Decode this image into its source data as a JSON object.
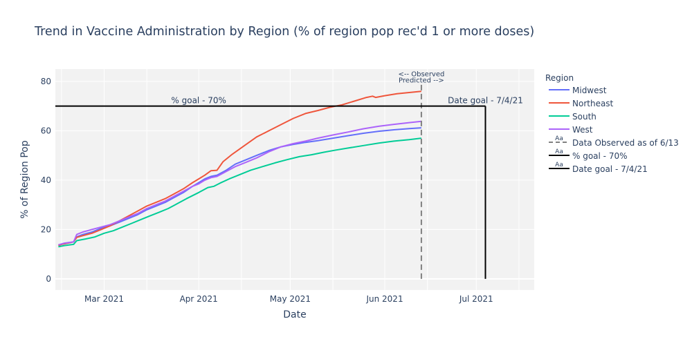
{
  "chart_data": {
    "type": "line",
    "title": "Trend in Vaccine Administration by Region (% of region pop rec'd 1 or more doses)",
    "xlabel": "Date",
    "ylabel": "% of Region Pop",
    "xlim": [
      "2021-02-13",
      "2021-07-20"
    ],
    "ylim": [
      -4.5,
      85
    ],
    "x_ticks": [
      {
        "date": "2021-03-01",
        "label": "Mar 2021"
      },
      {
        "date": "2021-04-01",
        "label": "Apr 2021"
      },
      {
        "date": "2021-05-01",
        "label": "May 2021"
      },
      {
        "date": "2021-06-01",
        "label": "Jun 2021"
      },
      {
        "date": "2021-07-01",
        "label": "Jul 2021"
      }
    ],
    "y_ticks": [
      0,
      20,
      40,
      60,
      80
    ],
    "grid": true,
    "plot_background": "#f2f2f2",
    "legend": {
      "title": "Region",
      "placement": "right",
      "entries": [
        {
          "name": "Midwest",
          "style": "line",
          "color": "#636efa"
        },
        {
          "name": "Northeast",
          "style": "line",
          "color": "#ef553b"
        },
        {
          "name": "South",
          "style": "line",
          "color": "#00cc96"
        },
        {
          "name": "West",
          "style": "line",
          "color": "#ab63fa"
        },
        {
          "name": "Data Observed as of 6/13",
          "style": "dash",
          "color": "#808080",
          "marker_text": "Aa"
        },
        {
          "name": "% goal - 70%",
          "style": "line",
          "color": "#000000",
          "marker_text": "Aa"
        },
        {
          "name": "Date goal - 7/4/21",
          "style": "line",
          "color": "#000000",
          "marker_text": "Aa"
        }
      ]
    },
    "series": [
      {
        "name": "Midwest",
        "color": "#636efa",
        "points": [
          [
            "2021-02-14",
            13.5
          ],
          [
            "2021-02-15",
            14.0
          ],
          [
            "2021-02-17",
            14.5
          ],
          [
            "2021-02-19",
            15.0
          ],
          [
            "2021-02-20",
            17.0
          ],
          [
            "2021-02-22",
            18.0
          ],
          [
            "2021-02-25",
            19.0
          ],
          [
            "2021-02-28",
            20.5
          ],
          [
            "2021-03-03",
            21.5
          ],
          [
            "2021-03-06",
            23.0
          ],
          [
            "2021-03-09",
            24.5
          ],
          [
            "2021-03-12",
            26.0
          ],
          [
            "2021-03-15",
            28.0
          ],
          [
            "2021-03-18",
            29.5
          ],
          [
            "2021-03-21",
            31.0
          ],
          [
            "2021-03-24",
            33.0
          ],
          [
            "2021-03-27",
            35.0
          ],
          [
            "2021-03-30",
            37.5
          ],
          [
            "2021-04-01",
            39.0
          ],
          [
            "2021-04-03",
            40.5
          ],
          [
            "2021-04-05",
            41.5
          ],
          [
            "2021-04-07",
            42.0
          ],
          [
            "2021-04-10",
            44.0
          ],
          [
            "2021-04-13",
            46.5
          ],
          [
            "2021-04-16",
            48.0
          ],
          [
            "2021-04-20",
            50.0
          ],
          [
            "2021-04-24",
            52.0
          ],
          [
            "2021-04-28",
            53.5
          ],
          [
            "2021-05-02",
            54.5
          ],
          [
            "2021-05-06",
            55.3
          ],
          [
            "2021-05-10",
            56.0
          ],
          [
            "2021-05-15",
            57.0
          ],
          [
            "2021-05-20",
            58.0
          ],
          [
            "2021-05-25",
            59.0
          ],
          [
            "2021-05-30",
            59.8
          ],
          [
            "2021-06-04",
            60.4
          ],
          [
            "2021-06-09",
            60.9
          ],
          [
            "2021-06-13",
            61.2
          ]
        ]
      },
      {
        "name": "Northeast",
        "color": "#ef553b",
        "points": [
          [
            "2021-02-14",
            13.5
          ],
          [
            "2021-02-15",
            14.0
          ],
          [
            "2021-02-17",
            14.5
          ],
          [
            "2021-02-19",
            15.0
          ],
          [
            "2021-02-20",
            16.8
          ],
          [
            "2021-02-22",
            17.5
          ],
          [
            "2021-02-25",
            18.5
          ],
          [
            "2021-02-28",
            20.0
          ],
          [
            "2021-03-03",
            21.5
          ],
          [
            "2021-03-06",
            23.5
          ],
          [
            "2021-03-09",
            25.5
          ],
          [
            "2021-03-12",
            27.5
          ],
          [
            "2021-03-15",
            29.5
          ],
          [
            "2021-03-18",
            31.0
          ],
          [
            "2021-03-21",
            32.5
          ],
          [
            "2021-03-24",
            34.5
          ],
          [
            "2021-03-27",
            36.5
          ],
          [
            "2021-03-30",
            39.0
          ],
          [
            "2021-04-01",
            40.5
          ],
          [
            "2021-04-03",
            42.0
          ],
          [
            "2021-04-05",
            43.8
          ],
          [
            "2021-04-07",
            44.0
          ],
          [
            "2021-04-09",
            47.5
          ],
          [
            "2021-04-12",
            50.5
          ],
          [
            "2021-04-16",
            54.0
          ],
          [
            "2021-04-20",
            57.5
          ],
          [
            "2021-04-24",
            60.0
          ],
          [
            "2021-04-28",
            62.5
          ],
          [
            "2021-05-02",
            65.0
          ],
          [
            "2021-05-06",
            67.0
          ],
          [
            "2021-05-10",
            68.2
          ],
          [
            "2021-05-14",
            69.5
          ],
          [
            "2021-05-18",
            70.5
          ],
          [
            "2021-05-22",
            72.0
          ],
          [
            "2021-05-26",
            73.5
          ],
          [
            "2021-05-28",
            74.0
          ],
          [
            "2021-05-29",
            73.5
          ],
          [
            "2021-06-01",
            74.2
          ],
          [
            "2021-06-05",
            75.0
          ],
          [
            "2021-06-09",
            75.5
          ],
          [
            "2021-06-13",
            76.0
          ]
        ]
      },
      {
        "name": "South",
        "color": "#00cc96",
        "points": [
          [
            "2021-02-14",
            13.0
          ],
          [
            "2021-02-16",
            13.5
          ],
          [
            "2021-02-19",
            14.0
          ],
          [
            "2021-02-20",
            15.5
          ],
          [
            "2021-02-23",
            16.2
          ],
          [
            "2021-02-26",
            17.0
          ],
          [
            "2021-03-01",
            18.5
          ],
          [
            "2021-03-04",
            19.5
          ],
          [
            "2021-03-07",
            21.0
          ],
          [
            "2021-03-10",
            22.5
          ],
          [
            "2021-03-13",
            24.0
          ],
          [
            "2021-03-16",
            25.5
          ],
          [
            "2021-03-19",
            27.0
          ],
          [
            "2021-03-22",
            28.5
          ],
          [
            "2021-03-25",
            30.5
          ],
          [
            "2021-03-28",
            32.5
          ],
          [
            "2021-04-01",
            35.0
          ],
          [
            "2021-04-04",
            37.0
          ],
          [
            "2021-04-06",
            37.5
          ],
          [
            "2021-04-08",
            38.8
          ],
          [
            "2021-04-11",
            40.5
          ],
          [
            "2021-04-14",
            42.0
          ],
          [
            "2021-04-18",
            44.0
          ],
          [
            "2021-04-22",
            45.5
          ],
          [
            "2021-04-26",
            47.0
          ],
          [
            "2021-04-30",
            48.3
          ],
          [
            "2021-05-04",
            49.5
          ],
          [
            "2021-05-08",
            50.3
          ],
          [
            "2021-05-12",
            51.3
          ],
          [
            "2021-05-16",
            52.2
          ],
          [
            "2021-05-20",
            53.0
          ],
          [
            "2021-05-25",
            54.0
          ],
          [
            "2021-05-30",
            55.0
          ],
          [
            "2021-06-04",
            55.8
          ],
          [
            "2021-06-09",
            56.4
          ],
          [
            "2021-06-13",
            57.0
          ]
        ]
      },
      {
        "name": "West",
        "color": "#ab63fa",
        "points": [
          [
            "2021-02-14",
            13.8
          ],
          [
            "2021-02-16",
            14.5
          ],
          [
            "2021-02-19",
            15.0
          ],
          [
            "2021-02-20",
            18.0
          ],
          [
            "2021-02-22",
            19.0
          ],
          [
            "2021-02-25",
            20.0
          ],
          [
            "2021-02-28",
            21.0
          ],
          [
            "2021-03-03",
            22.0
          ],
          [
            "2021-03-06",
            23.5
          ],
          [
            "2021-03-09",
            25.0
          ],
          [
            "2021-03-12",
            26.5
          ],
          [
            "2021-03-15",
            28.5
          ],
          [
            "2021-03-18",
            30.0
          ],
          [
            "2021-03-21",
            31.5
          ],
          [
            "2021-03-24",
            33.5
          ],
          [
            "2021-03-27",
            35.5
          ],
          [
            "2021-03-30",
            37.5
          ],
          [
            "2021-04-01",
            38.5
          ],
          [
            "2021-04-03",
            40.0
          ],
          [
            "2021-04-05",
            41.0
          ],
          [
            "2021-04-07",
            41.5
          ],
          [
            "2021-04-10",
            43.5
          ],
          [
            "2021-04-13",
            45.5
          ],
          [
            "2021-04-16",
            47.0
          ],
          [
            "2021-04-20",
            49.0
          ],
          [
            "2021-04-24",
            51.5
          ],
          [
            "2021-04-28",
            53.5
          ],
          [
            "2021-05-02",
            54.8
          ],
          [
            "2021-05-06",
            55.8
          ],
          [
            "2021-05-10",
            57.0
          ],
          [
            "2021-05-15",
            58.3
          ],
          [
            "2021-05-20",
            59.5
          ],
          [
            "2021-05-25",
            60.8
          ],
          [
            "2021-05-30",
            61.8
          ],
          [
            "2021-06-04",
            62.6
          ],
          [
            "2021-06-09",
            63.3
          ],
          [
            "2021-06-13",
            63.8
          ]
        ]
      }
    ],
    "reference_lines": [
      {
        "name": "Data Observed as of 6/13",
        "orientation": "vertical",
        "x": "2021-06-13",
        "y_range": [
          0,
          80
        ],
        "style": "dash",
        "color": "#808080"
      },
      {
        "name": "% goal - 70%",
        "orientation": "horizontal",
        "y": 70,
        "x_range": [
          "2021-02-13",
          "2021-07-04"
        ],
        "style": "solid",
        "color": "#000000"
      },
      {
        "name": "Date goal - 7/4/21",
        "orientation": "vertical",
        "x": "2021-07-04",
        "y_range": [
          0,
          70
        ],
        "style": "solid",
        "color": "#000000"
      }
    ],
    "annotations": [
      {
        "text": "<-- Observed",
        "x": "2021-06-13",
        "y": 82
      },
      {
        "text": "Predicted -->",
        "x": "2021-06-13",
        "y": 79.5
      },
      {
        "text": "% goal - 70%",
        "x": "2021-04-01",
        "y": 70
      },
      {
        "text": "Date goal - 7/4/21",
        "x": "2021-07-04",
        "y": 70
      }
    ]
  }
}
